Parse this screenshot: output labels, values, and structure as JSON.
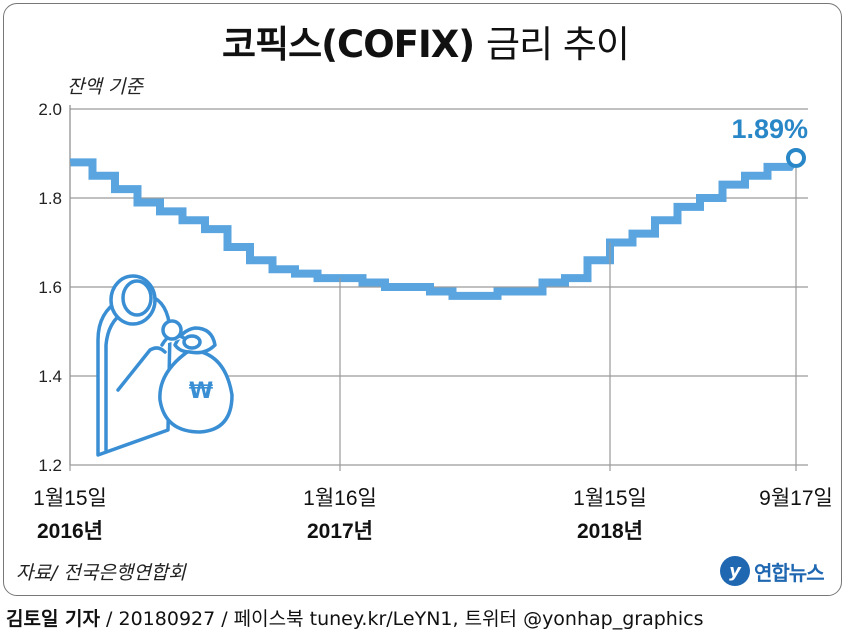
{
  "title": {
    "main": "코픽스(COFIX)",
    "sub": "금리 추이"
  },
  "basis_note": "잔액 기준",
  "source": "자료/ 전국은행연합회",
  "agency_logo": {
    "mark": "y",
    "name": "연합뉴스"
  },
  "credit": {
    "author": "김토일 기자",
    "rest": " / 20180927 / 페이스북 tuney.kr/LeYN1, 트위터 @yonhap_graphics"
  },
  "colors": {
    "line": "#5aa5df",
    "label": "#2a87c7",
    "icon_stroke": "#3a8fd4",
    "icon_fill": "#ffffff"
  },
  "chart_data": {
    "type": "line",
    "step": true,
    "ylim": [
      1.2,
      2.0
    ],
    "yticks": [
      "1.2",
      "1.4",
      "1.6",
      "1.8",
      "2.0"
    ],
    "grid": "horizontal",
    "x": [
      "2016-01",
      "2016-02",
      "2016-03",
      "2016-04",
      "2016-05",
      "2016-06",
      "2016-07",
      "2016-08",
      "2016-09",
      "2016-10",
      "2016-11",
      "2016-12",
      "2017-01",
      "2017-02",
      "2017-03",
      "2017-04",
      "2017-05",
      "2017-06",
      "2017-07",
      "2017-08",
      "2017-09",
      "2017-10",
      "2017-11",
      "2017-12",
      "2018-01",
      "2018-02",
      "2018-03",
      "2018-04",
      "2018-05",
      "2018-06",
      "2018-07",
      "2018-08"
    ],
    "values": [
      1.88,
      1.85,
      1.82,
      1.79,
      1.77,
      1.75,
      1.73,
      1.69,
      1.66,
      1.64,
      1.63,
      1.62,
      1.62,
      1.61,
      1.6,
      1.6,
      1.59,
      1.58,
      1.58,
      1.59,
      1.59,
      1.61,
      1.62,
      1.66,
      1.7,
      1.72,
      1.75,
      1.78,
      1.8,
      1.83,
      1.85,
      1.87
    ],
    "end_value": 1.89,
    "end_label": "1.89%",
    "x_markers": [
      {
        "date": "1월15일",
        "year": "2016년",
        "index": 0
      },
      {
        "date": "1월16일",
        "year": "2017년",
        "index": 12
      },
      {
        "date": "1월15일",
        "year": "2018년",
        "index": 24
      },
      {
        "date": "9월17일",
        "year": "",
        "index": 32
      }
    ]
  }
}
